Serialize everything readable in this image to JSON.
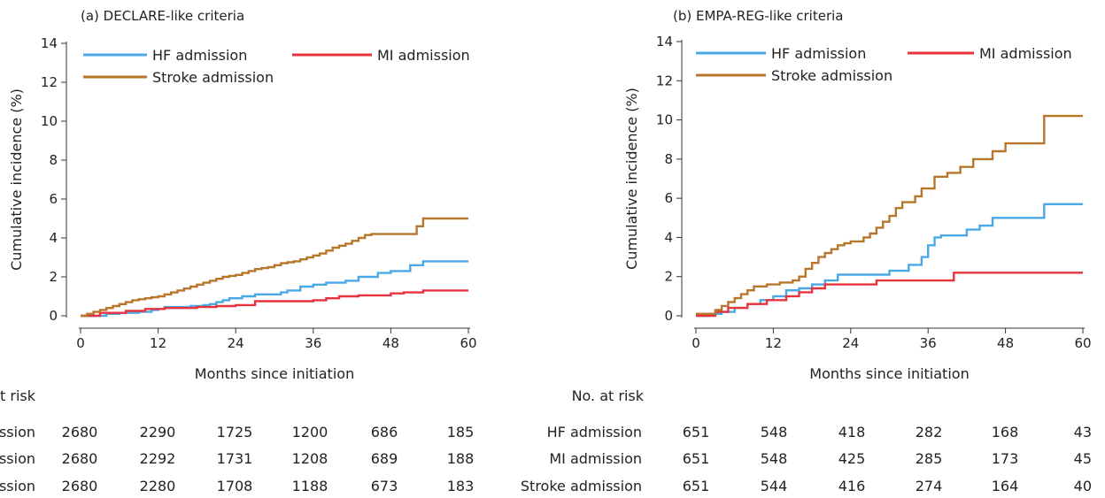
{
  "chart_data": [
    {
      "type": "line",
      "title": "(a)  DECLARE-like criteria",
      "xlabel": "Months since initiation",
      "ylabel": "Cumulative incidence (%)",
      "xlim": [
        0,
        60
      ],
      "ylim": [
        0,
        14
      ],
      "xticks": [
        "0",
        "12",
        "24",
        "36",
        "48",
        "60"
      ],
      "yticks": [
        "0",
        "2",
        "4",
        "6",
        "8",
        "10",
        "12",
        "14"
      ],
      "grid": false,
      "legend_position": "top",
      "series": [
        {
          "name": "HF admission",
          "color": "#4aa8e6",
          "x": [
            0,
            4,
            6,
            9,
            11,
            12,
            13,
            16,
            17,
            19,
            20,
            21,
            22,
            23,
            25,
            27,
            31,
            32,
            34,
            36,
            38,
            41,
            43,
            46,
            48,
            51,
            53,
            60
          ],
          "y": [
            0,
            0.1,
            0.15,
            0.2,
            0.3,
            0.35,
            0.45,
            0.45,
            0.5,
            0.55,
            0.6,
            0.7,
            0.8,
            0.9,
            1.0,
            1.1,
            1.2,
            1.3,
            1.5,
            1.6,
            1.7,
            1.8,
            2.0,
            2.2,
            2.3,
            2.6,
            2.8,
            2.8
          ]
        },
        {
          "name": "MI admission",
          "color": "#e8323c",
          "x": [
            0,
            3,
            7,
            10,
            13,
            18,
            21,
            24,
            27,
            30,
            32,
            36,
            38,
            40,
            43,
            48,
            50,
            53,
            60
          ],
          "y": [
            0,
            0.15,
            0.25,
            0.35,
            0.4,
            0.45,
            0.5,
            0.55,
            0.75,
            0.75,
            0.75,
            0.8,
            0.9,
            1.0,
            1.05,
            1.15,
            1.2,
            1.3,
            1.3
          ]
        },
        {
          "name": "Stroke admission",
          "color": "#b8762a",
          "x": [
            0,
            1,
            2,
            3,
            4,
            5,
            6,
            7,
            8,
            9,
            10,
            11,
            12,
            13,
            14,
            15,
            16,
            17,
            18,
            19,
            20,
            21,
            22,
            23,
            24,
            25,
            26,
            27,
            28,
            29,
            30,
            31,
            32,
            33,
            34,
            35,
            36,
            37,
            38,
            39,
            40,
            41,
            42,
            43,
            44,
            45,
            46,
            47,
            48,
            49,
            50,
            51,
            52,
            53,
            54,
            60
          ],
          "y": [
            0,
            0.1,
            0.2,
            0.3,
            0.4,
            0.5,
            0.6,
            0.7,
            0.8,
            0.85,
            0.9,
            0.95,
            1.0,
            1.1,
            1.2,
            1.3,
            1.4,
            1.5,
            1.6,
            1.7,
            1.8,
            1.9,
            2.0,
            2.05,
            2.1,
            2.2,
            2.3,
            2.4,
            2.45,
            2.5,
            2.6,
            2.7,
            2.75,
            2.8,
            2.9,
            3.0,
            3.1,
            3.2,
            3.35,
            3.5,
            3.6,
            3.7,
            3.85,
            4.0,
            4.15,
            4.2,
            4.2,
            4.2,
            4.2,
            4.2,
            4.2,
            4.2,
            4.6,
            5.0,
            5.0,
            5.0
          ]
        }
      ],
      "risk_table": {
        "header": "No. at risk",
        "rows": [
          {
            "label": "HF admission",
            "values": [
              "2680",
              "2290",
              "1725",
              "1200",
              "686",
              "185"
            ]
          },
          {
            "label": "MI admission",
            "values": [
              "2680",
              "2292",
              "1731",
              "1208",
              "689",
              "188"
            ]
          },
          {
            "label": "Stroke admission",
            "values": [
              "2680",
              "2280",
              "1708",
              "1188",
              "673",
              "183"
            ]
          }
        ]
      }
    },
    {
      "type": "line",
      "title": "(b)  EMPA-REG-like criteria",
      "xlabel": "Months since initiation",
      "ylabel": "Cumulative incidence (%)",
      "xlim": [
        0,
        60
      ],
      "ylim": [
        0,
        14
      ],
      "xticks": [
        "0",
        "12",
        "24",
        "36",
        "48",
        "60"
      ],
      "yticks": [
        "0",
        "2",
        "4",
        "6",
        "8",
        "10",
        "12",
        "14"
      ],
      "grid": false,
      "legend_position": "top",
      "series": [
        {
          "name": "HF admission",
          "color": "#4aa8e6",
          "x": [
            0,
            2,
            4,
            6,
            8,
            10,
            12,
            14,
            16,
            18,
            20,
            22,
            25,
            30,
            33,
            35,
            36,
            37,
            38,
            40,
            42,
            44,
            46,
            50,
            54,
            60
          ],
          "y": [
            0,
            0.1,
            0.2,
            0.4,
            0.6,
            0.8,
            1.0,
            1.3,
            1.4,
            1.6,
            1.8,
            2.1,
            2.1,
            2.3,
            2.6,
            3.0,
            3.6,
            4.0,
            4.1,
            4.1,
            4.4,
            4.6,
            5.0,
            5.0,
            5.7,
            5.7
          ]
        },
        {
          "name": "MI admission",
          "color": "#e8323c",
          "x": [
            0,
            3,
            5,
            8,
            11,
            14,
            16,
            18,
            20,
            24,
            28,
            32,
            36,
            40,
            44,
            48,
            60
          ],
          "y": [
            0,
            0.2,
            0.4,
            0.6,
            0.8,
            1.0,
            1.2,
            1.4,
            1.6,
            1.6,
            1.8,
            1.8,
            1.8,
            2.2,
            2.2,
            2.2,
            2.2
          ]
        },
        {
          "name": "Stroke admission",
          "color": "#b8762a",
          "x": [
            0,
            3,
            4,
            5,
            6,
            7,
            8,
            9,
            11,
            12,
            13,
            15,
            16,
            17,
            18,
            19,
            20,
            21,
            22,
            23,
            24,
            25,
            26,
            27,
            28,
            29,
            30,
            31,
            32,
            34,
            35,
            37,
            39,
            41,
            43,
            46,
            48,
            53,
            54,
            60
          ],
          "y": [
            0.1,
            0.3,
            0.5,
            0.7,
            0.9,
            1.1,
            1.3,
            1.5,
            1.6,
            1.6,
            1.7,
            1.8,
            2.0,
            2.4,
            2.7,
            3.0,
            3.2,
            3.4,
            3.6,
            3.7,
            3.8,
            3.8,
            4.0,
            4.2,
            4.5,
            4.8,
            5.1,
            5.5,
            5.8,
            6.1,
            6.5,
            7.1,
            7.3,
            7.6,
            8.0,
            8.4,
            8.8,
            8.8,
            10.2,
            10.2
          ]
        }
      ],
      "risk_table": {
        "header": "No. at risk",
        "rows": [
          {
            "label": "HF admission",
            "values": [
              "651",
              "548",
              "418",
              "282",
              "168",
              "43"
            ]
          },
          {
            "label": "MI admission",
            "values": [
              "651",
              "548",
              "425",
              "285",
              "173",
              "45"
            ]
          },
          {
            "label": "Stroke admission",
            "values": [
              "651",
              "544",
              "416",
              "274",
              "164",
              "40"
            ]
          }
        ]
      }
    }
  ]
}
